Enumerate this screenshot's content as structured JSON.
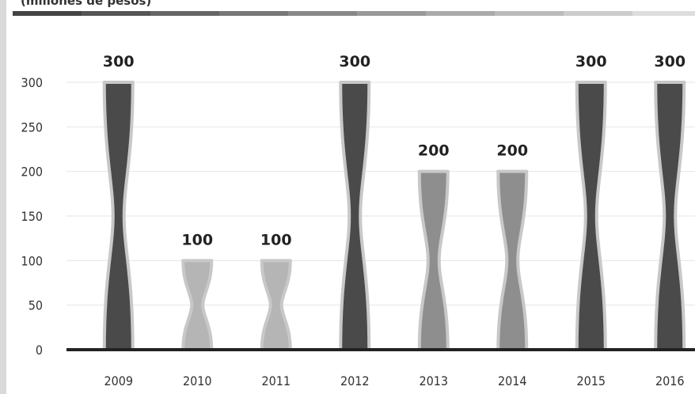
{
  "header": {
    "subtitle": "(millones de pesos)"
  },
  "colors": {
    "dark": "#4a4a4a",
    "light": "#b5b5b5",
    "mid": "#8e8e8e",
    "outline": "#c8c8c8",
    "grid": "#e6e6e6",
    "axis": "#222222"
  },
  "chart_data": {
    "type": "bar",
    "title": "",
    "subtitle": "(millones de pesos)",
    "xlabel": "",
    "ylabel": "",
    "categories": [
      "2009",
      "2010",
      "2011",
      "2012",
      "2013",
      "2014",
      "2015",
      "2016"
    ],
    "values": [
      300,
      100,
      100,
      300,
      200,
      200,
      300,
      300
    ],
    "data_labels": [
      "300",
      "100",
      "100",
      "300",
      "200",
      "200",
      "300",
      "300"
    ],
    "ylim": [
      0,
      300
    ],
    "yticks": [
      0,
      50,
      100,
      150,
      200,
      250,
      300
    ],
    "grid": true,
    "bar_shades": [
      "dark",
      "light",
      "light",
      "dark",
      "mid",
      "mid",
      "dark",
      "dark"
    ]
  }
}
